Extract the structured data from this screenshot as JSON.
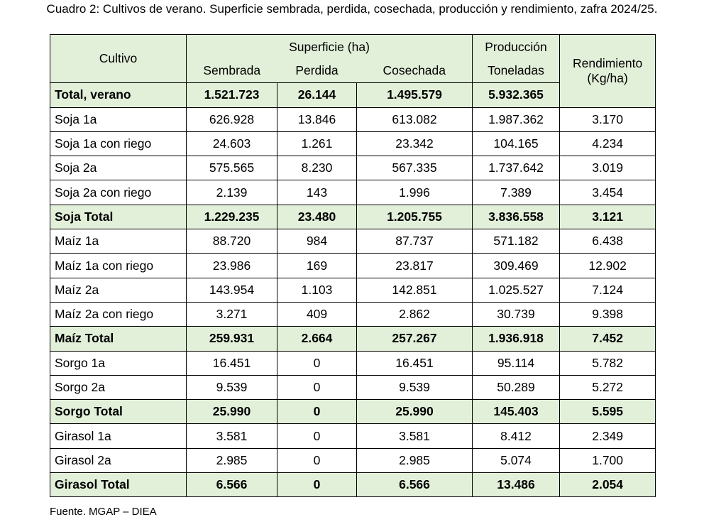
{
  "title": "Cuadro 2: Cultivos de verano. Superficie sembrada, perdida, cosechada, producción y rendimiento, zafra 2024/25.",
  "table": {
    "header": {
      "cultivo": "Cultivo",
      "superficie": "Superficie (ha)",
      "sembrada": "Sembrada",
      "perdida": "Perdida",
      "cosechada": "Cosechada",
      "produccion": "Producción",
      "toneladas": "Toneladas",
      "rendimiento": "Rendimiento (Kg/ha)"
    },
    "header_color": "#e2f0d9",
    "rows": [
      {
        "style": "total",
        "cells": [
          "Total, verano",
          "1.521.723",
          "26.144",
          "1.495.579",
          "5.932.365"
        ]
      },
      {
        "cells": [
          "Soja 1a",
          "626.928",
          "13.846",
          "613.082",
          "1.987.362",
          "3.170"
        ]
      },
      {
        "cells": [
          "Soja 1a con riego",
          "24.603",
          "1.261",
          "23.342",
          "104.165",
          "4.234"
        ]
      },
      {
        "cells": [
          "Soja 2a",
          "575.565",
          "8.230",
          "567.335",
          "1.737.642",
          "3.019"
        ]
      },
      {
        "cells": [
          "Soja 2a con riego",
          "2.139",
          "143",
          "1.996",
          "7.389",
          "3.454"
        ]
      },
      {
        "style": "total",
        "cells": [
          "Soja Total",
          "1.229.235",
          "23.480",
          "1.205.755",
          "3.836.558",
          "3.121"
        ]
      },
      {
        "cells": [
          "Maíz 1a",
          "88.720",
          "984",
          "87.737",
          "571.182",
          "6.438"
        ]
      },
      {
        "cells": [
          "Maíz 1a con riego",
          "23.986",
          "169",
          "23.817",
          "309.469",
          "12.902"
        ]
      },
      {
        "cells": [
          "Maíz 2a",
          "143.954",
          "1.103",
          "142.851",
          "1.025.527",
          "7.124"
        ]
      },
      {
        "cells": [
          "Maíz 2a con riego",
          "3.271",
          "409",
          "2.862",
          "30.739",
          "9.398"
        ]
      },
      {
        "style": "total",
        "cells": [
          "Maíz Total",
          "259.931",
          "2.664",
          "257.267",
          "1.936.918",
          "7.452"
        ]
      },
      {
        "cells": [
          "Sorgo 1a",
          "16.451",
          "0",
          "16.451",
          "95.114",
          "5.782"
        ]
      },
      {
        "cells": [
          "Sorgo 2a",
          "9.539",
          "0",
          "9.539",
          "50.289",
          "5.272"
        ]
      },
      {
        "style": "total",
        "cells": [
          "Sorgo Total",
          "25.990",
          "0",
          "25.990",
          "145.403",
          "5.595"
        ]
      },
      {
        "cells": [
          "Girasol 1a",
          "3.581",
          "0",
          "3.581",
          "8.412",
          "2.349"
        ]
      },
      {
        "cells": [
          "Girasol 2a",
          "2.985",
          "0",
          "2.985",
          "5.074",
          "1.700"
        ]
      },
      {
        "style": "total",
        "cells": [
          "Girasol Total",
          "6.566",
          "0",
          "6.566",
          "13.486",
          "2.054"
        ]
      }
    ]
  },
  "source": "Fuente. MGAP – DIEA"
}
